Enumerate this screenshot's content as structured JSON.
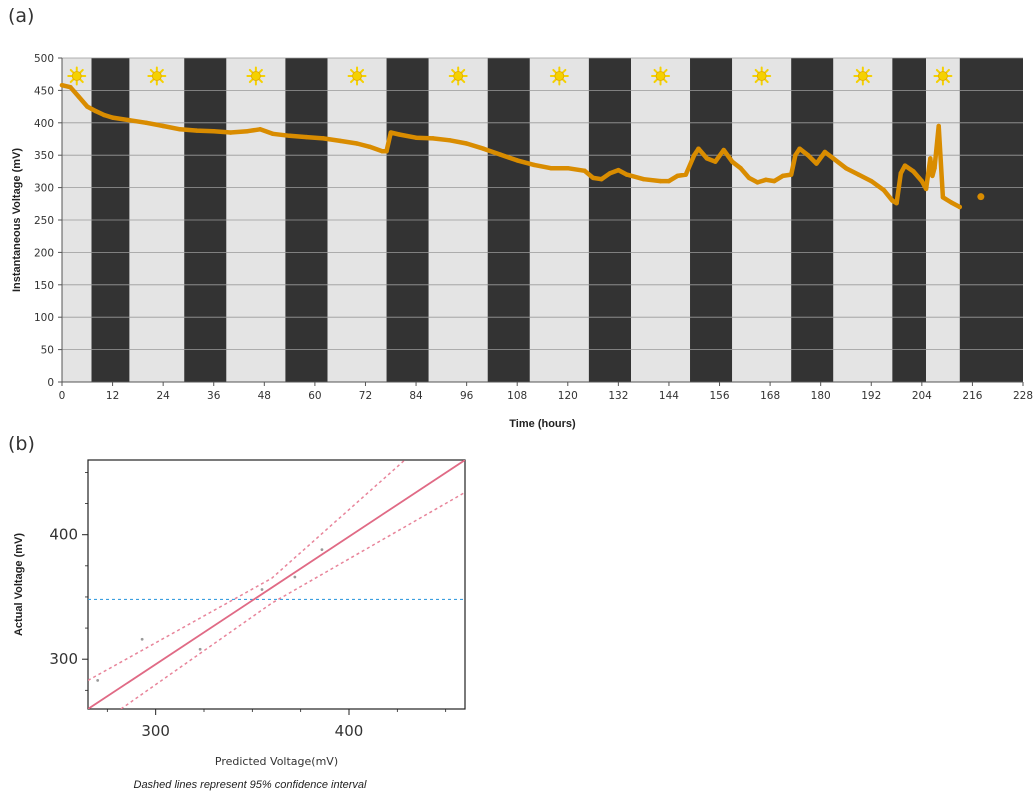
{
  "panels": {
    "a_label": "(a)",
    "b_label": "(b)"
  },
  "caption": "Dashed lines represent 95% confidence interval",
  "colors": {
    "night_band": "#333333",
    "day_band": "#e4e4e4",
    "voltage_line": "#d98c00",
    "sun": "#f5d100",
    "fit_line": "#e06a85",
    "ci_line": "#e8849a",
    "mean_line": "#3b9fe0"
  },
  "icons": {
    "day": "sun-icon",
    "night": "moon-icon"
  },
  "chart_data": [
    {
      "type": "line",
      "title": "",
      "xlabel": "Time (hours)",
      "ylabel": "Instantaneous Voltage (mV)",
      "xlim": [
        0,
        228
      ],
      "ylim": [
        0,
        500
      ],
      "x_ticks": [
        0,
        12,
        24,
        36,
        48,
        60,
        72,
        84,
        96,
        108,
        120,
        132,
        144,
        156,
        168,
        180,
        192,
        204,
        216,
        228
      ],
      "y_ticks": [
        0,
        50,
        100,
        150,
        200,
        250,
        300,
        350,
        400,
        450,
        500
      ],
      "grid": true,
      "bands": [
        {
          "period": "day",
          "start": 0,
          "end": 7
        },
        {
          "period": "night",
          "start": 7,
          "end": 16
        },
        {
          "period": "day",
          "start": 16,
          "end": 29
        },
        {
          "period": "night",
          "start": 29,
          "end": 39
        },
        {
          "period": "day",
          "start": 39,
          "end": 53
        },
        {
          "period": "night",
          "start": 53,
          "end": 63
        },
        {
          "period": "day",
          "start": 63,
          "end": 77
        },
        {
          "period": "night",
          "start": 77,
          "end": 87
        },
        {
          "period": "day",
          "start": 87,
          "end": 101
        },
        {
          "period": "night",
          "start": 101,
          "end": 111
        },
        {
          "period": "day",
          "start": 111,
          "end": 125
        },
        {
          "period": "night",
          "start": 125,
          "end": 135
        },
        {
          "period": "day",
          "start": 135,
          "end": 149
        },
        {
          "period": "night",
          "start": 149,
          "end": 159
        },
        {
          "period": "day",
          "start": 159,
          "end": 173
        },
        {
          "period": "night",
          "start": 173,
          "end": 183
        },
        {
          "period": "day",
          "start": 183,
          "end": 197
        },
        {
          "period": "night",
          "start": 197,
          "end": 205
        },
        {
          "period": "day",
          "start": 205,
          "end": 213
        },
        {
          "period": "night",
          "start": 213,
          "end": 228
        }
      ],
      "series": [
        {
          "points": [
            [
              0,
              458
            ],
            [
              2,
              455
            ],
            [
              4,
              440
            ],
            [
              6,
              425
            ],
            [
              8,
              418
            ],
            [
              10,
              412
            ],
            [
              12,
              408
            ],
            [
              16,
              404
            ],
            [
              20,
              400
            ],
            [
              24,
              395
            ],
            [
              28,
              390
            ],
            [
              32,
              388
            ],
            [
              36,
              387
            ],
            [
              40,
              385
            ],
            [
              44,
              387
            ],
            [
              47,
              390
            ],
            [
              50,
              383
            ],
            [
              54,
              380
            ],
            [
              58,
              378
            ],
            [
              62,
              376
            ],
            [
              66,
              372
            ],
            [
              70,
              368
            ],
            [
              73,
              363
            ],
            [
              76,
              356
            ],
            [
              77,
              356
            ],
            [
              78,
              385
            ],
            [
              80,
              382
            ],
            [
              84,
              377
            ],
            [
              88,
              376
            ],
            [
              92,
              373
            ],
            [
              96,
              368
            ],
            [
              100,
              360
            ],
            [
              104,
              351
            ],
            [
              108,
              342
            ],
            [
              112,
              335
            ],
            [
              116,
              330
            ],
            [
              120,
              330
            ],
            [
              124,
              326
            ],
            [
              126,
              315
            ],
            [
              128,
              313
            ],
            [
              130,
              322
            ],
            [
              132,
              327
            ],
            [
              134,
              320
            ],
            [
              138,
              313
            ],
            [
              142,
              310
            ],
            [
              144,
              310
            ],
            [
              146,
              318
            ],
            [
              148,
              320
            ],
            [
              150,
              350
            ],
            [
              151,
              360
            ],
            [
              153,
              345
            ],
            [
              155,
              340
            ],
            [
              157,
              358
            ],
            [
              159,
              340
            ],
            [
              161,
              330
            ],
            [
              163,
              315
            ],
            [
              165,
              308
            ],
            [
              167,
              312
            ],
            [
              169,
              310
            ],
            [
              171,
              318
            ],
            [
              173,
              320
            ],
            [
              174,
              350
            ],
            [
              175,
              360
            ],
            [
              177,
              350
            ],
            [
              179,
              337
            ],
            [
              181,
              355
            ],
            [
              183,
              345
            ],
            [
              186,
              330
            ],
            [
              189,
              320
            ],
            [
              192,
              310
            ],
            [
              195,
              296
            ],
            [
              197,
              280
            ],
            [
              198,
              276
            ],
            [
              199,
              322
            ],
            [
              200,
              334
            ],
            [
              202,
              325
            ],
            [
              204,
              310
            ],
            [
              205,
              298
            ],
            [
              206,
              345
            ],
            [
              206.5,
              318
            ],
            [
              207,
              330
            ],
            [
              208,
              395
            ],
            [
              209,
              285
            ],
            [
              211,
              277
            ],
            [
              213,
              270
            ]
          ]
        }
      ],
      "isolated_points": [
        [
          218,
          286
        ]
      ]
    },
    {
      "type": "scatter",
      "title": "",
      "xlabel": "Predicted Voltage(mV)",
      "ylabel": "Actual Voltage (mV)",
      "xlim": [
        265,
        460
      ],
      "ylim": [
        260,
        460
      ],
      "x_ticks": [
        300,
        400
      ],
      "y_ticks": [
        300,
        400
      ],
      "points": [
        [
          270,
          283
        ],
        [
          293,
          316
        ],
        [
          323,
          308
        ],
        [
          355,
          356
        ],
        [
          372,
          366
        ],
        [
          386,
          388
        ]
      ],
      "fit_line": [
        [
          265,
          260
        ],
        [
          460,
          460
        ]
      ],
      "ci_upper": [
        [
          265,
          283
        ],
        [
          360,
          365
        ],
        [
          460,
          503
        ]
      ],
      "ci_lower": [
        [
          282,
          260
        ],
        [
          360,
          345
        ],
        [
          460,
          434
        ]
      ],
      "mean_line_y": 348
    }
  ]
}
